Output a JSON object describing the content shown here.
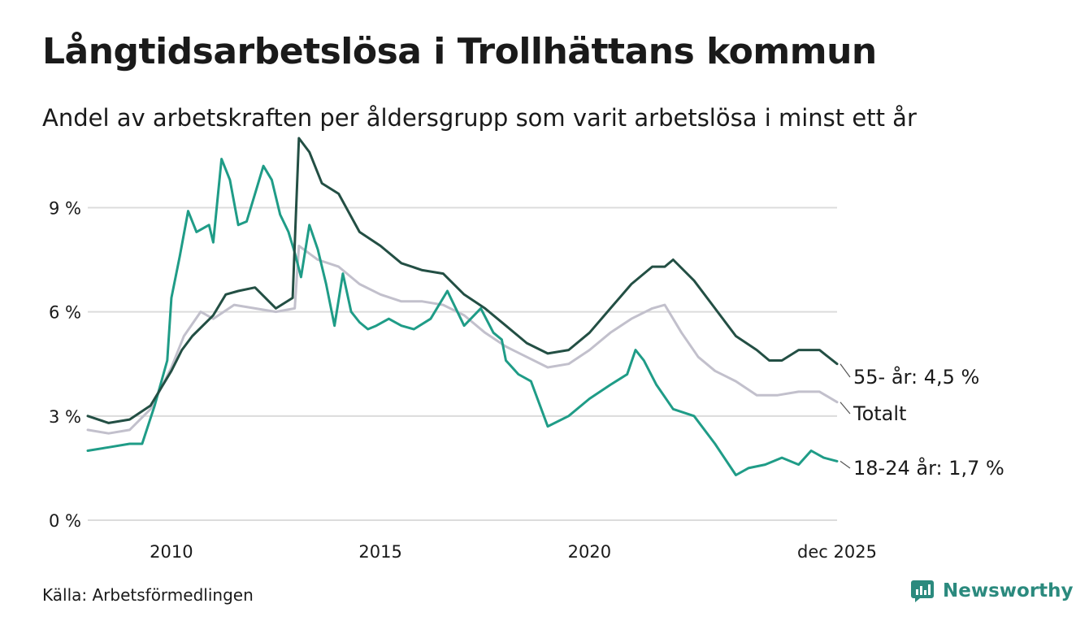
{
  "title": "Långtidsarbetslösa i Trollhättans kommun",
  "subtitle": "Andel av arbetskraften per åldersgrupp som varit arbetslösa i minst ett år",
  "source": "Källa: Arbetsförmedlingen",
  "brand": {
    "name": "Newsworthy",
    "icon": "bar-chart-speech-bubble-icon",
    "color": "#2b8a7e"
  },
  "chart_data": {
    "type": "line",
    "title": "Långtidsarbetslösa i Trollhättans kommun",
    "xlabel": "",
    "ylabel": "",
    "xlim": [
      2008,
      2025.92
    ],
    "ylim": [
      0,
      11
    ],
    "grid": true,
    "y_ticks": [
      0,
      3,
      6,
      9
    ],
    "y_tick_labels": [
      "0 %",
      "3 %",
      "6 %",
      "9 %"
    ],
    "x_ticks": [
      2010,
      2015,
      2020,
      2025.92
    ],
    "x_tick_labels": [
      "2010",
      "2015",
      "2020",
      "dec 2025"
    ],
    "series": [
      {
        "name": "55- år",
        "end_label": "55- år: 4,5 %",
        "color": "#234f44",
        "width": 3,
        "x": [
          2008,
          2008.5,
          2009,
          2009.5,
          2010,
          2010.25,
          2010.5,
          2011,
          2011.3,
          2011.6,
          2012,
          2012.5,
          2012.9,
          2013.05,
          2013.3,
          2013.6,
          2014,
          2014.5,
          2015,
          2015.5,
          2016,
          2016.5,
          2017,
          2017.5,
          2018,
          2018.5,
          2019,
          2019.5,
          2020,
          2020.5,
          2021,
          2021.5,
          2021.8,
          2022,
          2022.5,
          2023,
          2023.5,
          2024,
          2024.3,
          2024.6,
          2025,
          2025.5,
          2025.92
        ],
        "y": [
          3.0,
          2.8,
          2.9,
          3.3,
          4.3,
          4.9,
          5.3,
          5.9,
          6.5,
          6.6,
          6.7,
          6.1,
          6.4,
          11.0,
          10.6,
          9.7,
          9.4,
          8.3,
          7.9,
          7.4,
          7.2,
          7.1,
          6.5,
          6.1,
          5.6,
          5.1,
          4.8,
          4.9,
          5.4,
          6.1,
          6.8,
          7.3,
          7.3,
          7.5,
          6.9,
          6.1,
          5.3,
          4.9,
          4.6,
          4.6,
          4.9,
          4.9,
          4.5
        ]
      },
      {
        "name": "Totalt",
        "end_label": "Totalt",
        "color": "#c2c0cc",
        "width": 3,
        "x": [
          2008,
          2008.5,
          2009,
          2009.5,
          2010,
          2010.3,
          2010.7,
          2011,
          2011.5,
          2012,
          2012.5,
          2012.95,
          2013.05,
          2013.5,
          2014,
          2014.5,
          2015,
          2015.5,
          2016,
          2016.5,
          2017,
          2017.5,
          2018,
          2018.5,
          2019,
          2019.5,
          2020,
          2020.5,
          2021,
          2021.5,
          2021.8,
          2022.2,
          2022.6,
          2023,
          2023.5,
          2024,
          2024.5,
          2025,
          2025.5,
          2025.92
        ],
        "y": [
          2.6,
          2.5,
          2.6,
          3.2,
          4.4,
          5.3,
          6.0,
          5.8,
          6.2,
          6.1,
          6.0,
          6.1,
          7.9,
          7.5,
          7.3,
          6.8,
          6.5,
          6.3,
          6.3,
          6.2,
          5.9,
          5.4,
          5.0,
          4.7,
          4.4,
          4.5,
          4.9,
          5.4,
          5.8,
          6.1,
          6.2,
          5.4,
          4.7,
          4.3,
          4.0,
          3.6,
          3.6,
          3.7,
          3.7,
          3.4
        ]
      },
      {
        "name": "18-24 år",
        "end_label": "18-24 år: 1,7 %",
        "color": "#1f9c87",
        "width": 3,
        "x": [
          2008,
          2008.5,
          2009,
          2009.3,
          2009.6,
          2009.9,
          2010,
          2010.2,
          2010.4,
          2010.6,
          2010.9,
          2011,
          2011.2,
          2011.4,
          2011.6,
          2011.8,
          2012,
          2012.2,
          2012.4,
          2012.6,
          2012.8,
          2012.95,
          2013.1,
          2013.3,
          2013.5,
          2013.7,
          2013.9,
          2014.1,
          2014.3,
          2014.5,
          2014.7,
          2014.9,
          2015.2,
          2015.5,
          2015.8,
          2016.2,
          2016.6,
          2017,
          2017.4,
          2017.7,
          2017.9,
          2018,
          2018.3,
          2018.6,
          2019,
          2019.5,
          2020,
          2020.5,
          2020.9,
          2021.1,
          2021.3,
          2021.6,
          2022,
          2022.5,
          2023,
          2023.5,
          2023.8,
          2024.2,
          2024.6,
          2025,
          2025.3,
          2025.6,
          2025.92
        ],
        "y": [
          2.0,
          2.1,
          2.2,
          2.2,
          3.3,
          4.6,
          6.4,
          7.6,
          8.9,
          8.3,
          8.5,
          8.0,
          10.4,
          9.8,
          8.5,
          8.6,
          9.4,
          10.2,
          9.8,
          8.8,
          8.3,
          7.7,
          7.0,
          8.5,
          7.8,
          6.8,
          5.6,
          7.1,
          6.0,
          5.7,
          5.5,
          5.6,
          5.8,
          5.6,
          5.5,
          5.8,
          6.6,
          5.6,
          6.1,
          5.4,
          5.2,
          4.6,
          4.2,
          4.0,
          2.7,
          3.0,
          3.5,
          3.9,
          4.2,
          4.9,
          4.6,
          3.9,
          3.2,
          3.0,
          2.2,
          1.3,
          1.5,
          1.6,
          1.8,
          1.6,
          2.0,
          1.8,
          1.7
        ]
      }
    ]
  }
}
